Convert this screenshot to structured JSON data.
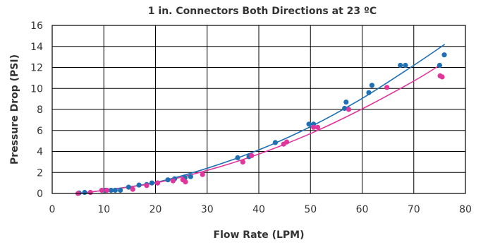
{
  "chart_data": {
    "type": "scatter",
    "title": "1 in. Connectors Both Directions at 23 ºC",
    "xlabel": "Flow Rate (LPM)",
    "ylabel": "Pressure Drop (PSI)",
    "xlim": [
      0,
      80
    ],
    "ylim": [
      0,
      16
    ],
    "xticks": [
      "0",
      "10",
      "20",
      "30",
      "40",
      "50",
      "60",
      "70",
      "80"
    ],
    "yticks": [
      "0",
      "2",
      "4",
      "6",
      "8",
      "10",
      "12",
      "14",
      "16"
    ],
    "grid": true,
    "legend": "none",
    "series": [
      {
        "color": "#1f6fb5",
        "points": [
          [
            5.2,
            0.05
          ],
          [
            6.3,
            0.1
          ],
          [
            10.3,
            0.3
          ],
          [
            11.4,
            0.3
          ],
          [
            12.2,
            0.3
          ],
          [
            13.2,
            0.3
          ],
          [
            14.8,
            0.6
          ],
          [
            16.8,
            0.8
          ],
          [
            18.3,
            0.85
          ],
          [
            19.3,
            1.0
          ],
          [
            20.4,
            1.0
          ],
          [
            22.4,
            1.3
          ],
          [
            23.7,
            1.4
          ],
          [
            25.7,
            1.5
          ],
          [
            26.8,
            1.6
          ],
          [
            35.9,
            3.4
          ],
          [
            38.1,
            3.5
          ],
          [
            43.2,
            4.85
          ],
          [
            49.7,
            6.6
          ],
          [
            50.6,
            6.6
          ],
          [
            56.6,
            8.1
          ],
          [
            56.9,
            8.7
          ],
          [
            61.3,
            9.6
          ],
          [
            61.9,
            10.3
          ],
          [
            67.4,
            12.2
          ],
          [
            68.4,
            12.2
          ],
          [
            75.0,
            12.2
          ],
          [
            75.9,
            13.2
          ]
        ],
        "fit": [
          [
            5,
            0.0
          ],
          [
            10,
            0.3
          ],
          [
            20,
            1.05
          ],
          [
            30,
            2.4
          ],
          [
            40,
            4.15
          ],
          [
            50,
            6.35
          ],
          [
            60,
            9.05
          ],
          [
            70,
            12.2
          ],
          [
            76,
            14.2
          ]
        ]
      },
      {
        "color": "#e0359b",
        "points": [
          [
            5.0,
            0.0
          ],
          [
            7.4,
            0.1
          ],
          [
            9.6,
            0.3
          ],
          [
            10.6,
            0.3
          ],
          [
            15.6,
            0.4
          ],
          [
            18.3,
            0.75
          ],
          [
            20.4,
            1.0
          ],
          [
            23.4,
            1.2
          ],
          [
            25.3,
            1.3
          ],
          [
            25.8,
            1.1
          ],
          [
            29.1,
            1.8
          ],
          [
            36.9,
            3.0
          ],
          [
            38.6,
            3.6
          ],
          [
            44.8,
            4.7
          ],
          [
            45.4,
            4.9
          ],
          [
            50.6,
            6.3
          ],
          [
            51.4,
            6.3
          ],
          [
            57.4,
            8.0
          ],
          [
            64.8,
            10.1
          ],
          [
            75.1,
            11.2
          ],
          [
            75.5,
            11.1
          ]
        ],
        "fit": [
          [
            5,
            0.0
          ],
          [
            10,
            0.3
          ],
          [
            20,
            1.0
          ],
          [
            30,
            2.2
          ],
          [
            40,
            3.75
          ],
          [
            50,
            5.7
          ],
          [
            60,
            8.05
          ],
          [
            70,
            10.7
          ],
          [
            75,
            12.2
          ]
        ]
      }
    ]
  }
}
